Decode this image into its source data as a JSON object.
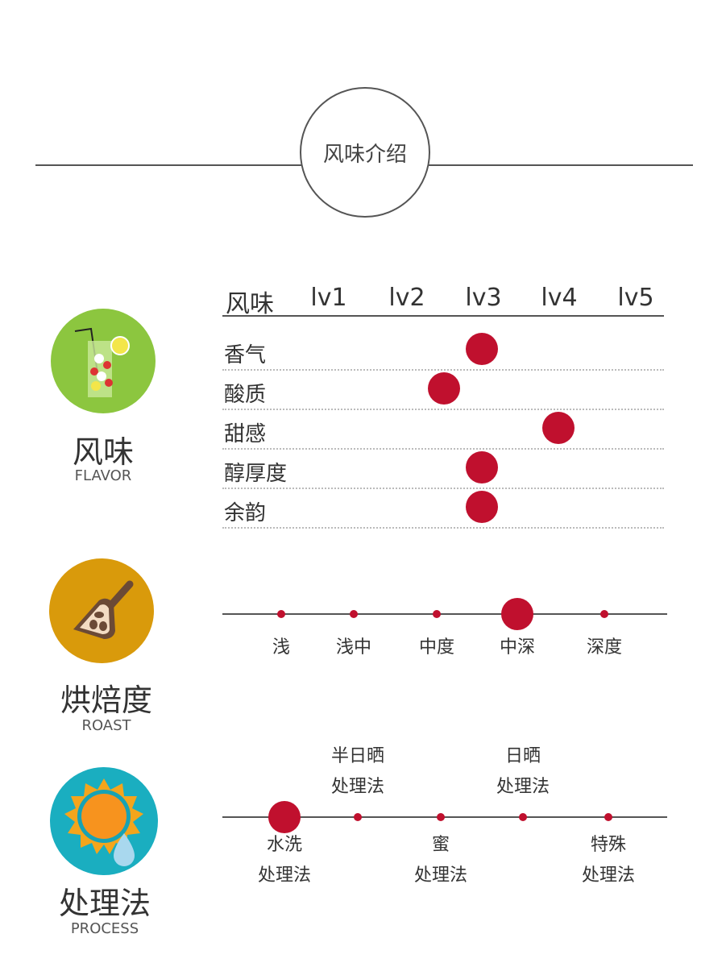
{
  "title": "风味介绍",
  "colors": {
    "accent": "#c0102e",
    "flavor_icon": "#8cc63f",
    "roast_icon": "#d99a0b",
    "process_icon": "#1aaec0"
  },
  "flavor": {
    "cn": "风味",
    "en": "FLAVOR",
    "icon": "cocktail-icon",
    "header": [
      "风味",
      "lv1",
      "lv2",
      "lv3",
      "lv4",
      "lv5"
    ],
    "rows": [
      {
        "label": "香气",
        "level": 3
      },
      {
        "label": "酸质",
        "level": 2.5
      },
      {
        "label": "甜感",
        "level": 4
      },
      {
        "label": "醇厚度",
        "level": 3
      },
      {
        "label": "余韵",
        "level": 3
      }
    ]
  },
  "roast": {
    "cn": "烘焙度",
    "en": "ROAST",
    "icon": "coffee-scoop-icon",
    "options": [
      "浅",
      "浅中",
      "中度",
      "中深",
      "深度"
    ],
    "selected": 3
  },
  "process": {
    "cn": "处理法",
    "en": "PROCESS",
    "icon": "sun-water-drop-icon",
    "options": [
      {
        "line1": "水洗",
        "line2": "处理法"
      },
      {
        "line1": "半日晒",
        "line2": "处理法"
      },
      {
        "line1": "蜜",
        "line2": "处理法"
      },
      {
        "line1": "日晒",
        "line2": "处理法"
      },
      {
        "line1": "特殊",
        "line2": "处理法"
      }
    ],
    "selected": 0
  }
}
